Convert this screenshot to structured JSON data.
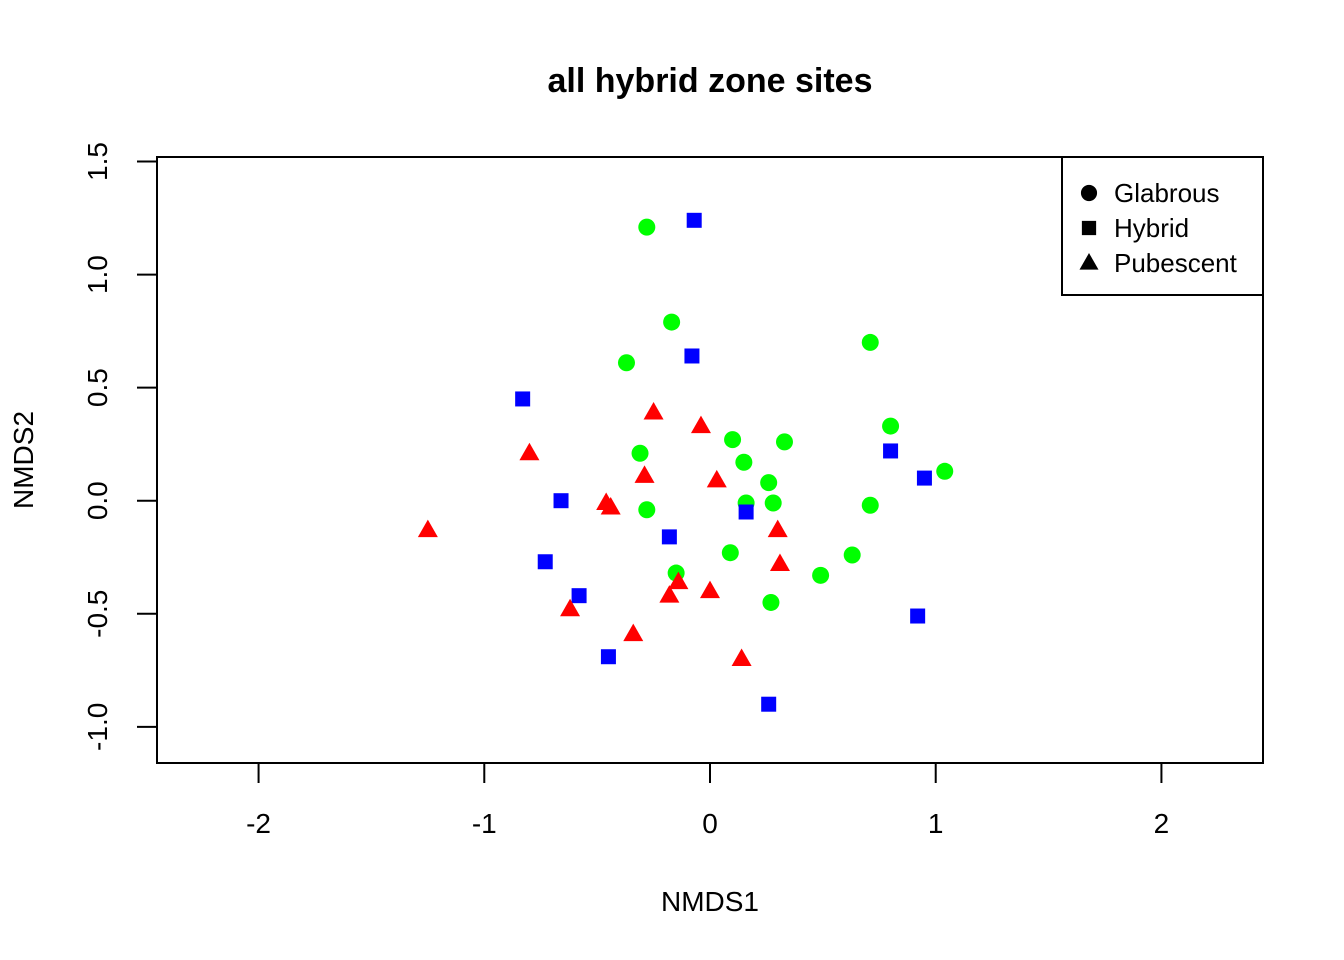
{
  "chart_data": {
    "type": "scatter",
    "title": "all hybrid zone sites",
    "xlabel": "NMDS1",
    "ylabel": "NMDS2",
    "xlim": [
      -2.45,
      2.45
    ],
    "ylim": [
      -1.16,
      1.52
    ],
    "xticks": [
      -2,
      -1,
      0,
      1,
      2
    ],
    "xtick_labels": [
      "-2",
      "-1",
      "0",
      "1",
      "2"
    ],
    "yticks": [
      -1.0,
      -0.5,
      0.0,
      0.5,
      1.0,
      1.5
    ],
    "ytick_labels": [
      "-1.0",
      "-0.5",
      "0.0",
      "0.5",
      "1.0",
      "1.5"
    ],
    "grid": false,
    "legend_position": "top-right",
    "series": [
      {
        "name": "Glabrous",
        "marker": "circle",
        "color": "#00ff00",
        "points": [
          [
            -0.28,
            1.21
          ],
          [
            -0.17,
            0.79
          ],
          [
            -0.37,
            0.61
          ],
          [
            0.71,
            0.7
          ],
          [
            0.8,
            0.33
          ],
          [
            0.1,
            0.27
          ],
          [
            0.33,
            0.26
          ],
          [
            -0.31,
            0.21
          ],
          [
            0.15,
            0.17
          ],
          [
            0.26,
            0.08
          ],
          [
            1.04,
            0.13
          ],
          [
            -0.28,
            -0.04
          ],
          [
            0.16,
            -0.01
          ],
          [
            0.28,
            -0.01
          ],
          [
            0.71,
            -0.02
          ],
          [
            0.09,
            -0.23
          ],
          [
            0.63,
            -0.24
          ],
          [
            -0.15,
            -0.32
          ],
          [
            0.49,
            -0.33
          ],
          [
            0.27,
            -0.45
          ]
        ]
      },
      {
        "name": "Hybrid",
        "marker": "square",
        "color": "#0000ff",
        "points": [
          [
            -0.07,
            1.24
          ],
          [
            -0.08,
            0.64
          ],
          [
            -0.83,
            0.45
          ],
          [
            0.8,
            0.22
          ],
          [
            0.95,
            0.1
          ],
          [
            -0.66,
            0.0
          ],
          [
            0.16,
            -0.05
          ],
          [
            -0.18,
            -0.16
          ],
          [
            -0.73,
            -0.27
          ],
          [
            -0.58,
            -0.42
          ],
          [
            0.92,
            -0.51
          ],
          [
            -0.45,
            -0.69
          ],
          [
            0.26,
            -0.9
          ]
        ]
      },
      {
        "name": "Pubescent",
        "marker": "triangle",
        "color": "#ff0000",
        "points": [
          [
            -0.25,
            0.39
          ],
          [
            -0.04,
            0.33
          ],
          [
            -0.8,
            0.21
          ],
          [
            -0.29,
            0.11
          ],
          [
            0.03,
            0.09
          ],
          [
            -0.46,
            -0.01
          ],
          [
            -0.44,
            -0.03
          ],
          [
            -1.25,
            -0.13
          ],
          [
            0.3,
            -0.13
          ],
          [
            0.31,
            -0.28
          ],
          [
            -0.14,
            -0.36
          ],
          [
            -0.18,
            -0.42
          ],
          [
            0.0,
            -0.4
          ],
          [
            -0.62,
            -0.48
          ],
          [
            -0.34,
            -0.59
          ],
          [
            0.14,
            -0.7
          ]
        ]
      }
    ]
  }
}
